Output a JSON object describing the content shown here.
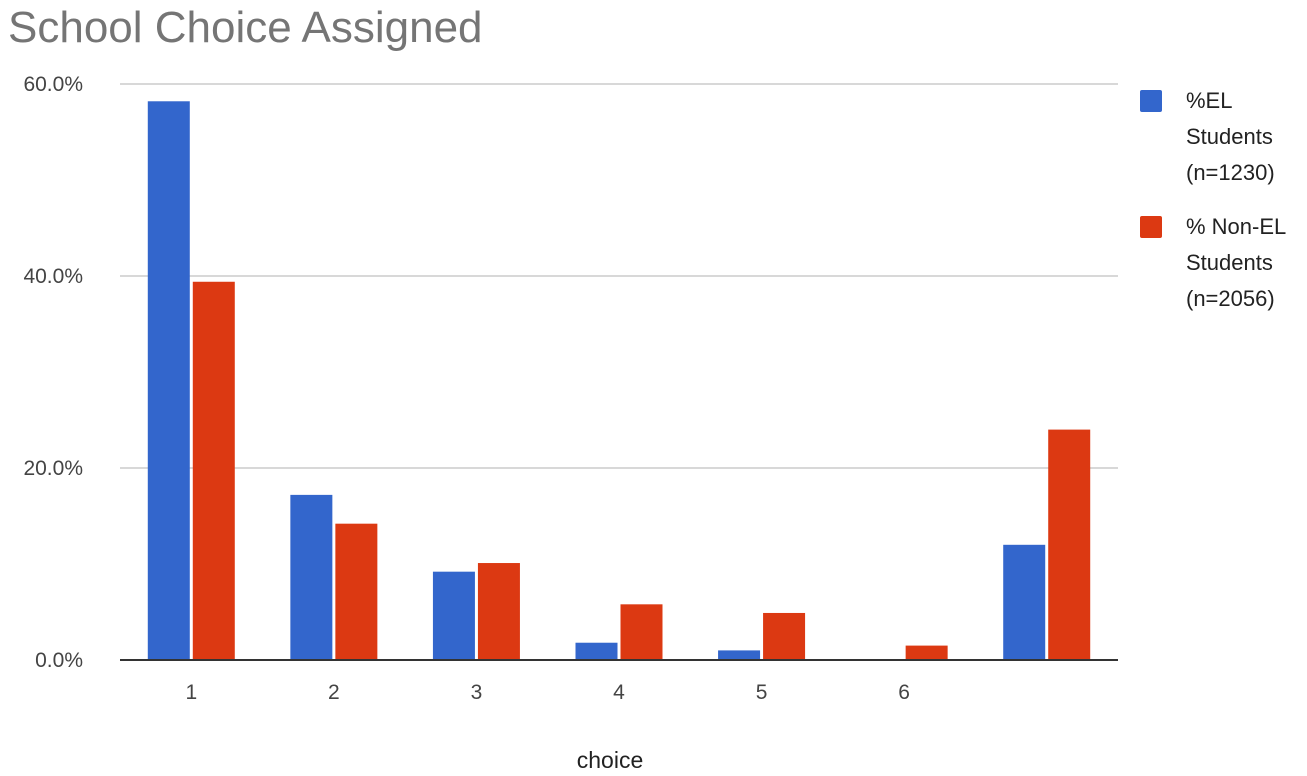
{
  "chart_data": {
    "type": "bar",
    "title": "School Choice Assigned",
    "xlabel": "choice",
    "ylabel": "",
    "categories": [
      "1",
      "2",
      "3",
      "4",
      "5",
      "6",
      ""
    ],
    "series": [
      {
        "name": "%EL Students (n=1230)",
        "legend_lines": [
          "%EL",
          "Students",
          "(n=1230)"
        ],
        "color": "#3366cc",
        "values": [
          58.2,
          17.2,
          9.2,
          1.8,
          1.0,
          0.0,
          12.0
        ]
      },
      {
        "name": "% Non-EL Students (n=2056)",
        "legend_lines": [
          "% Non-EL",
          "Students",
          "(n=2056)"
        ],
        "color": "#dc3912",
        "values": [
          39.4,
          14.2,
          10.1,
          5.8,
          4.9,
          1.5,
          24.0
        ]
      }
    ],
    "ylim": [
      0,
      60
    ],
    "yticks": [
      0,
      20,
      40,
      60
    ],
    "ytick_labels": [
      "0.0%",
      "20.0%",
      "40.0%",
      "60.0%"
    ],
    "grid": true,
    "legend_position": "right"
  }
}
